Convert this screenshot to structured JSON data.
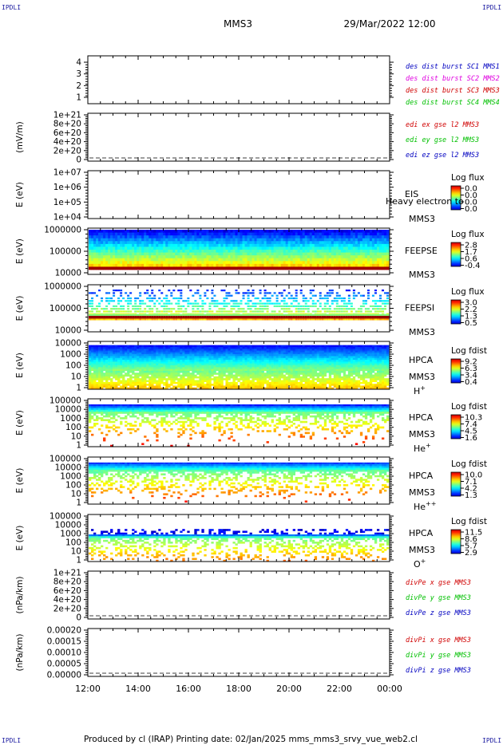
{
  "corner_label": "IPDLI",
  "header": {
    "spacecraft": "MMS3",
    "datetime": "29/Mar/2022 12:00"
  },
  "footer": {
    "text": "Produced by cl (IRAP)   Printing date: 02/Jan/2025   mms_mms3_srvy_vue_web2.cl"
  },
  "colors": {
    "red": "#d00000",
    "green": "#00c000",
    "blue": "#0000c0",
    "magenta": "#e000e0"
  },
  "chart_data": {
    "type": "heatmap",
    "x_tick_labels": [
      "12:00",
      "14:00",
      "16:00",
      "18:00",
      "20:00",
      "22:00",
      "00:00"
    ],
    "panels": [
      {
        "id": "des",
        "yticks": [
          "4",
          "3",
          "2",
          "1"
        ],
        "ylabel": "",
        "legend": [
          {
            "text": "des dist burst SC1 MMS1",
            "color": "#0000c0"
          },
          {
            "text": "des dist burst SC2 MMS2",
            "color": "#e000e0"
          },
          {
            "text": "des dist burst SC3 MMS3",
            "color": "#d00000"
          },
          {
            "text": "des dist burst SC4 MMS4",
            "color": "#00c000"
          }
        ]
      },
      {
        "id": "edi",
        "yticks": [
          "1e+21",
          "8e+20",
          "6e+20",
          "4e+20",
          "2e+20",
          "0"
        ],
        "ylabel": "(mV/m)",
        "legend": [
          {
            "text": "edi ex gse l2 MMS3",
            "color": "#d00000"
          },
          {
            "text": "edi ey gse l2 MMS3",
            "color": "#00c000"
          },
          {
            "text": "edi ez gse l2 MMS3",
            "color": "#0000c0"
          }
        ]
      },
      {
        "id": "eis",
        "yticks": [
          "1e+07",
          "1e+06",
          "1e+05",
          "1e+04"
        ],
        "ylabel": "E (eV)",
        "instrument": "EIS",
        "instrument2": "Heavy electron to",
        "sc": "MMS3",
        "species": "",
        "cbar_title": "Log flux",
        "cbar_ticks": [
          "0.0",
          "0.0",
          "0.0",
          "0.0"
        ],
        "spectrogram": "none"
      },
      {
        "id": "feepse",
        "yticks": [
          "1000000",
          "100000",
          "10000"
        ],
        "ylabel": "E (eV)",
        "instrument": "FEEPSE",
        "sc": "MMS3",
        "species": "",
        "cbar_title": "Log flux",
        "cbar_ticks": [
          "2.8",
          "1.7",
          "0.6",
          "-0.4"
        ],
        "spectrogram": "dense"
      },
      {
        "id": "feepsi",
        "yticks": [
          "1000000",
          "100000",
          "10000"
        ],
        "ylabel": "E (eV)",
        "instrument": "FEEPSI",
        "sc": "MMS3",
        "species": "",
        "cbar_title": "Log flux",
        "cbar_ticks": [
          "3.0",
          "2.2",
          "1.3",
          "0.5"
        ],
        "spectrogram": "speckle"
      },
      {
        "id": "hpca_h",
        "yticks": [
          "10000",
          "1000",
          "100",
          "10",
          "1"
        ],
        "ylabel": "E (eV)",
        "instrument": "HPCA",
        "sc": "MMS3",
        "species": "H+",
        "cbar_title": "Log fdist",
        "cbar_ticks": [
          "9.2",
          "6.3",
          "3.4",
          "0.4"
        ],
        "spectrogram": "hpca_h"
      },
      {
        "id": "hpca_he",
        "yticks": [
          "100000",
          "10000",
          "1000",
          "100",
          "10",
          "1"
        ],
        "ylabel": "E (eV)",
        "instrument": "HPCA",
        "sc": "MMS3",
        "species": "He+",
        "cbar_title": "Log fdist",
        "cbar_ticks": [
          "10.3",
          "7.4",
          "4.5",
          "1.6"
        ],
        "spectrogram": "hpca_he"
      },
      {
        "id": "hpca_hepp",
        "yticks": [
          "100000",
          "10000",
          "1000",
          "100",
          "10",
          "1"
        ],
        "ylabel": "E (eV)",
        "instrument": "HPCA",
        "sc": "MMS3",
        "species": "He++",
        "cbar_title": "Log fdist",
        "cbar_ticks": [
          "10.0",
          "7.1",
          "4.2",
          "1.3"
        ],
        "spectrogram": "hpca_hepp"
      },
      {
        "id": "hpca_o",
        "yticks": [
          "100000",
          "10000",
          "1000",
          "100",
          "10",
          "1"
        ],
        "ylabel": "E (eV)",
        "instrument": "HPCA",
        "sc": "MMS3",
        "species": "O+",
        "cbar_title": "Log fdist",
        "cbar_ticks": [
          "11.5",
          "8.6",
          "5.7",
          "2.9"
        ],
        "spectrogram": "hpca_o"
      },
      {
        "id": "divpe",
        "yticks": [
          "1e+21",
          "8e+20",
          "6e+20",
          "4e+20",
          "2e+20",
          "0"
        ],
        "ylabel": "(nPa/km)",
        "legend": [
          {
            "text": "divPe x gse MMS3",
            "color": "#d00000"
          },
          {
            "text": "divPe y gse MMS3",
            "color": "#00c000"
          },
          {
            "text": "divPe z gse MMS3",
            "color": "#0000c0"
          }
        ]
      },
      {
        "id": "divpi",
        "yticks": [
          "0.00020",
          "0.00015",
          "0.00010",
          "0.00005",
          "0.00000"
        ],
        "ylabel": "(nPa/km)",
        "legend": [
          {
            "text": "divPi x gse MMS3",
            "color": "#d00000"
          },
          {
            "text": "divPi y gse MMS3",
            "color": "#00c000"
          },
          {
            "text": "divPi z gse MMS3",
            "color": "#0000c0"
          }
        ]
      }
    ]
  }
}
